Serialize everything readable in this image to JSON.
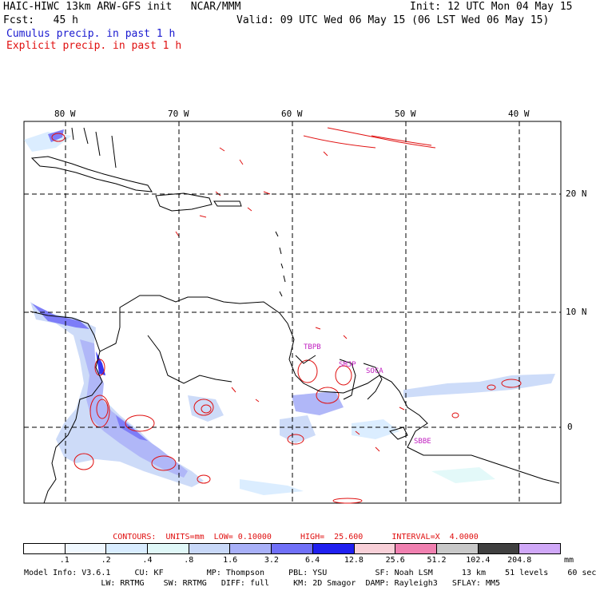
{
  "header": {
    "title": "HAIC-HIWC 13km ARW-GFS init   NCAR/MMM",
    "init": "Init: 12 UTC Mon 04 May 15",
    "fcst": "Fcst:   45 h",
    "valid": "Valid: 09 UTC Wed 06 May 15 (06 LST Wed 06 May 15)",
    "cumulus": "Cumulus precip. in past 1 h",
    "explicit": "Explicit precip. in past 1 h"
  },
  "map": {
    "lon_labels": [
      "80 W",
      "70 W",
      "60 W",
      "50 W",
      "40 W"
    ],
    "lat_labels": [
      "20 N",
      "10 N",
      "0"
    ],
    "stations": [
      "TBPB",
      "SMJP",
      "SOCA",
      "SBBE"
    ]
  },
  "legend": {
    "contours": "CONTOURS:  UNITS=mm  LOW= 0.10000      HIGH=  25.600      INTERVAL=X  4.0000",
    "ticks": [
      ".1",
      ".2",
      ".4",
      ".8",
      "1.6",
      "3.2",
      "6.4",
      "12.8",
      "25.6",
      "51.2",
      "102.4",
      "204.8"
    ],
    "unit": "mm",
    "colors": [
      "#ffffff",
      "#f0f8ff",
      "#d8ecff",
      "#e0f8f8",
      "#c8d8f8",
      "#a8b0f8",
      "#7070f8",
      "#2020f0",
      "#f8d0d8",
      "#f080b0",
      "#c8c8c8",
      "#404040",
      "#d0a8f8"
    ]
  },
  "model_info": {
    "line1": "Model Info: V3.6.1     CU: KF         MP: Thompson     PBL: YSU          SF: Noah LSM      13 km    51 levels    60 sec",
    "line2": "                LW: RRTMG    SW: RRTMG   DIFF: full     KM: 2D Smagor  DAMP: Rayleigh3   SFLAY: MM5"
  }
}
